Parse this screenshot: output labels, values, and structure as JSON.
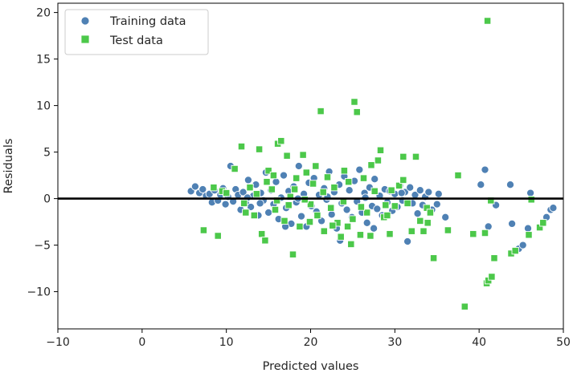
{
  "chart_data": {
    "type": "scatter",
    "title": "",
    "xlabel": "Predicted values",
    "ylabel": "Residuals",
    "xlim": [
      -10,
      50
    ],
    "ylim": [
      -14,
      21
    ],
    "xticks": [
      -10,
      0,
      10,
      20,
      30,
      40,
      50
    ],
    "yticks": [
      -10,
      -5,
      0,
      5,
      10,
      15,
      20
    ],
    "xtick_labels": [
      "−10",
      "0",
      "10",
      "20",
      "30",
      "40",
      "50"
    ],
    "ytick_labels": [
      "−10",
      "−5",
      "0",
      "5",
      "10",
      "15",
      "20"
    ],
    "hline": {
      "y": 0,
      "color": "#000000"
    },
    "legend": {
      "placement": "upper-left"
    },
    "series": [
      {
        "name": "Training data",
        "marker": "circle",
        "color": "#4f81b4",
        "points": [
          [
            5.8,
            0.8
          ],
          [
            6.3,
            1.3
          ],
          [
            6.8,
            0.6
          ],
          [
            7.2,
            1.0
          ],
          [
            7.6,
            0.3
          ],
          [
            8.0,
            0.5
          ],
          [
            8.3,
            -0.4
          ],
          [
            8.6,
            0.9
          ],
          [
            9.0,
            -0.2
          ],
          [
            9.3,
            0.4
          ],
          [
            9.6,
            1.1
          ],
          [
            9.9,
            -0.6
          ],
          [
            10.2,
            0.2
          ],
          [
            10.5,
            3.5
          ],
          [
            10.8,
            -0.3
          ],
          [
            11.1,
            1.0
          ],
          [
            11.4,
            0.4
          ],
          [
            11.7,
            -1.2
          ],
          [
            12.0,
            0.7
          ],
          [
            12.3,
            -0.5
          ],
          [
            12.6,
            2.0
          ],
          [
            12.9,
            -0.9
          ],
          [
            13.2,
            0.3
          ],
          [
            13.5,
            1.5
          ],
          [
            13.8,
            -1.8
          ],
          [
            14.1,
            0.6
          ],
          [
            14.4,
            -0.2
          ],
          [
            14.7,
            2.8
          ],
          [
            15.0,
            -1.5
          ],
          [
            15.3,
            0.9
          ],
          [
            15.6,
            -0.6
          ],
          [
            15.9,
            1.8
          ],
          [
            16.2,
            -2.2
          ],
          [
            16.5,
            0.1
          ],
          [
            16.8,
            2.5
          ],
          [
            17.1,
            -1.0
          ],
          [
            17.4,
            0.8
          ],
          [
            17.7,
            -2.7
          ],
          [
            18.0,
            1.3
          ],
          [
            18.3,
            -0.4
          ],
          [
            18.6,
            3.5
          ],
          [
            18.9,
            -1.9
          ],
          [
            19.2,
            0.5
          ],
          [
            19.5,
            -3.0
          ],
          [
            19.8,
            1.7
          ],
          [
            20.1,
            -0.8
          ],
          [
            20.4,
            2.2
          ],
          [
            20.7,
            -1.4
          ],
          [
            21.0,
            0.4
          ],
          [
            21.3,
            -2.4
          ],
          [
            21.6,
            1.1
          ],
          [
            21.9,
            -0.1
          ],
          [
            22.2,
            2.9
          ],
          [
            22.5,
            -1.7
          ],
          [
            22.8,
            0.7
          ],
          [
            23.1,
            -3.2
          ],
          [
            23.4,
            1.5
          ],
          [
            23.7,
            -0.5
          ],
          [
            24.0,
            2.4
          ],
          [
            24.3,
            -1.2
          ],
          [
            24.6,
            0.9
          ],
          [
            24.9,
            -2.0
          ],
          [
            25.2,
            1.9
          ],
          [
            25.5,
            -0.3
          ],
          [
            25.8,
            3.1
          ],
          [
            26.1,
            -1.5
          ],
          [
            26.4,
            0.6
          ],
          [
            26.7,
            -2.6
          ],
          [
            27.0,
            1.2
          ],
          [
            27.3,
            -0.8
          ],
          [
            27.6,
            2.1
          ],
          [
            27.9,
            -1.1
          ],
          [
            28.2,
            0.3
          ],
          [
            28.5,
            -1.8
          ],
          [
            28.8,
            1.0
          ],
          [
            29.1,
            -0.4
          ],
          [
            29.4,
            0.8
          ],
          [
            29.7,
            -1.3
          ],
          [
            30.0,
            0.5
          ],
          [
            30.3,
            -0.9
          ],
          [
            30.6,
            1.4
          ],
          [
            30.9,
            -0.2
          ],
          [
            31.2,
            0.7
          ],
          [
            31.5,
            -4.6
          ],
          [
            31.8,
            1.2
          ],
          [
            32.1,
            -0.5
          ],
          [
            32.4,
            0.4
          ],
          [
            32.7,
            -1.6
          ],
          [
            33.0,
            0.9
          ],
          [
            33.3,
            -0.7
          ],
          [
            33.6,
            0.2
          ],
          [
            34.0,
            0.7
          ],
          [
            34.4,
            -1.2
          ],
          [
            35.0,
            -0.6
          ],
          [
            36.0,
            -2.0
          ],
          [
            23.5,
            -4.5
          ],
          [
            27.5,
            -3.2
          ],
          [
            17.0,
            -3.0
          ],
          [
            40.2,
            1.5
          ],
          [
            40.7,
            3.1
          ],
          [
            41.1,
            -3.0
          ],
          [
            42.0,
            -0.7
          ],
          [
            43.7,
            1.5
          ],
          [
            43.9,
            -2.7
          ],
          [
            44.7,
            -5.4
          ],
          [
            45.2,
            -5.0
          ],
          [
            45.8,
            -3.2
          ],
          [
            46.1,
            0.6
          ],
          [
            48.0,
            -2.0
          ],
          [
            48.5,
            -1.2
          ],
          [
            48.8,
            -1.0
          ],
          [
            41.0,
            -8.9
          ],
          [
            10.0,
            0.6
          ],
          [
            22.0,
            0.2
          ],
          [
            26.5,
            0.1
          ],
          [
            18.5,
            0.0
          ],
          [
            14.0,
            -0.5
          ],
          [
            30.8,
            0.6
          ],
          [
            35.2,
            0.5
          ],
          [
            12.5,
            0.1
          ]
        ]
      },
      {
        "name": "Test data",
        "marker": "square",
        "color": "#4cc84a",
        "points": [
          [
            7.3,
            -3.4
          ],
          [
            8.5,
            1.2
          ],
          [
            9.0,
            -4.0
          ],
          [
            9.5,
            0.8
          ],
          [
            10.0,
            0.6
          ],
          [
            11.0,
            3.2
          ],
          [
            11.8,
            5.6
          ],
          [
            12.1,
            -0.5
          ],
          [
            12.8,
            1.2
          ],
          [
            13.3,
            -1.8
          ],
          [
            13.9,
            5.3
          ],
          [
            14.2,
            -3.8
          ],
          [
            14.6,
            -4.5
          ],
          [
            15.0,
            3.0
          ],
          [
            15.4,
            1.0
          ],
          [
            15.8,
            -1.2
          ],
          [
            16.1,
            5.9
          ],
          [
            16.5,
            6.2
          ],
          [
            16.9,
            -2.4
          ],
          [
            17.2,
            4.6
          ],
          [
            17.6,
            0.2
          ],
          [
            17.9,
            -6.0
          ],
          [
            18.3,
            2.2
          ],
          [
            18.7,
            -3.0
          ],
          [
            19.1,
            4.7
          ],
          [
            19.5,
            2.8
          ],
          [
            19.9,
            -2.5
          ],
          [
            20.3,
            1.6
          ],
          [
            20.8,
            -1.8
          ],
          [
            21.2,
            9.4
          ],
          [
            21.6,
            -3.5
          ],
          [
            22.0,
            2.3
          ],
          [
            22.4,
            -1.0
          ],
          [
            22.8,
            1.2
          ],
          [
            23.2,
            -2.6
          ],
          [
            23.6,
            -4.1
          ],
          [
            24.0,
            3.0
          ],
          [
            24.4,
            -3.0
          ],
          [
            24.8,
            -4.9
          ],
          [
            25.2,
            10.4
          ],
          [
            25.5,
            9.3
          ],
          [
            25.9,
            -3.9
          ],
          [
            26.3,
            2.2
          ],
          [
            26.7,
            -1.5
          ],
          [
            27.1,
            -4.0
          ],
          [
            27.6,
            0.8
          ],
          [
            28.0,
            4.1
          ],
          [
            28.3,
            5.2
          ],
          [
            28.7,
            -2.0
          ],
          [
            29.1,
            -1.8
          ],
          [
            29.6,
            0.9
          ],
          [
            30.0,
            -0.8
          ],
          [
            30.5,
            1.4
          ],
          [
            31.0,
            4.5
          ],
          [
            31.5,
            -0.5
          ],
          [
            32.0,
            -3.5
          ],
          [
            32.5,
            4.5
          ],
          [
            33.0,
            -2.4
          ],
          [
            33.4,
            -3.5
          ],
          [
            33.8,
            -1.0
          ],
          [
            34.2,
            -1.5
          ],
          [
            34.6,
            -6.4
          ],
          [
            36.3,
            -3.4
          ],
          [
            37.5,
            2.5
          ],
          [
            38.3,
            -11.6
          ],
          [
            39.3,
            -3.8
          ],
          [
            40.7,
            -3.7
          ],
          [
            40.9,
            -9.1
          ],
          [
            41.1,
            -8.8
          ],
          [
            41.5,
            -8.4
          ],
          [
            41.8,
            -6.4
          ],
          [
            41.0,
            19.1
          ],
          [
            41.4,
            -0.2
          ],
          [
            43.8,
            -5.9
          ],
          [
            44.3,
            -5.6
          ],
          [
            45.9,
            -3.9
          ],
          [
            46.2,
            -0.1
          ],
          [
            47.2,
            -3.1
          ],
          [
            47.6,
            -2.6
          ],
          [
            31.0,
            2.0
          ],
          [
            24.5,
            1.8
          ],
          [
            20.0,
            -0.6
          ],
          [
            16.0,
            -0.2
          ],
          [
            14.8,
            1.8
          ],
          [
            27.2,
            3.6
          ],
          [
            22.6,
            -2.9
          ],
          [
            18.1,
            1.0
          ],
          [
            29.4,
            -3.8
          ],
          [
            12.3,
            -1.5
          ],
          [
            33.9,
            -2.6
          ],
          [
            19.3,
            -0.1
          ],
          [
            26.0,
            -0.9
          ],
          [
            21.5,
            0.7
          ],
          [
            17.4,
            -0.7
          ],
          [
            13.6,
            0.5
          ],
          [
            23.9,
            -0.3
          ],
          [
            28.9,
            -0.7
          ],
          [
            15.6,
            2.5
          ],
          [
            25.0,
            -2.2
          ],
          [
            20.6,
            3.5
          ]
        ]
      }
    ]
  },
  "legend": {
    "items": [
      {
        "label": "Training data",
        "marker": "circle"
      },
      {
        "label": "Test data",
        "marker": "square"
      }
    ]
  }
}
